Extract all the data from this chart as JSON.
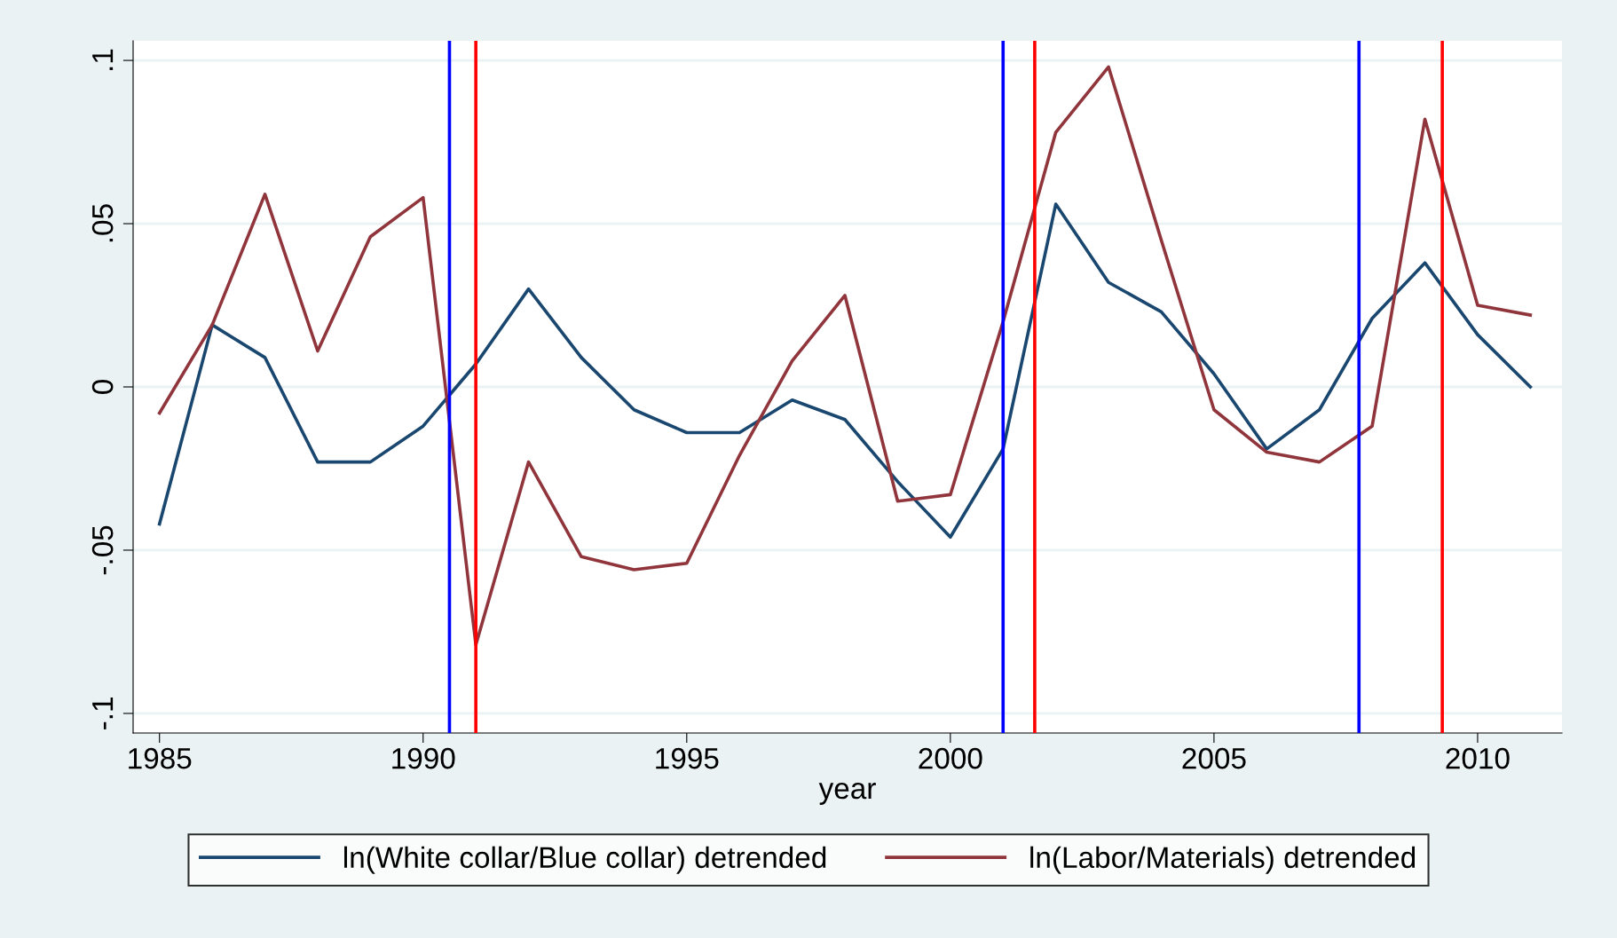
{
  "chart_data": {
    "type": "line",
    "xlabel": "year",
    "x": [
      1985,
      1986,
      1987,
      1988,
      1989,
      1990,
      1991,
      1992,
      1993,
      1994,
      1995,
      1996,
      1997,
      1998,
      1999,
      2000,
      2001,
      2002,
      2003,
      2004,
      2005,
      2006,
      2007,
      2008,
      2009,
      2010,
      2011
    ],
    "series": [
      {
        "name": "ln(White collar/Blue collar) detrended",
        "color": "#1a476f",
        "values": [
          -0.042,
          0.019,
          0.009,
          -0.023,
          -0.023,
          -0.012,
          0.007,
          0.03,
          0.009,
          -0.007,
          -0.014,
          -0.014,
          -0.004,
          -0.01,
          -0.029,
          -0.046,
          -0.019,
          0.056,
          0.032,
          0.023,
          0.004,
          -0.019,
          -0.007,
          0.021,
          0.038,
          0.016,
          0.0
        ]
      },
      {
        "name": "ln(Labor/Materials) detrended",
        "color": "#90353b",
        "values": [
          -0.008,
          0.019,
          0.059,
          0.011,
          0.046,
          0.058,
          -0.079,
          -0.023,
          -0.052,
          -0.056,
          -0.054,
          -0.021,
          0.008,
          0.028,
          -0.035,
          -0.033,
          0.02,
          0.078,
          0.098,
          0.045,
          -0.007,
          -0.02,
          -0.023,
          -0.012,
          0.082,
          0.025,
          0.022
        ]
      }
    ],
    "ref_lines": [
      {
        "axis": "x",
        "value": 1990.5,
        "color": "#0000ff"
      },
      {
        "axis": "x",
        "value": 1991,
        "color": "#ff0000"
      },
      {
        "axis": "x",
        "value": 2001,
        "color": "#0000ff"
      },
      {
        "axis": "x",
        "value": 2001.6,
        "color": "#ff0000"
      },
      {
        "axis": "x",
        "value": 2007.75,
        "color": "#0000ff"
      },
      {
        "axis": "x",
        "value": 2009.33,
        "color": "#ff0000"
      }
    ],
    "xlim": [
      1984.5,
      2011.6
    ],
    "xticks": [
      1985,
      1990,
      1995,
      2000,
      2005,
      2010
    ],
    "ylim": [
      -0.106,
      0.106
    ],
    "yticks": [
      {
        "value": -0.1,
        "label": "-.1"
      },
      {
        "value": -0.05,
        "label": "-.05"
      },
      {
        "value": 0,
        "label": "0"
      },
      {
        "value": 0.05,
        "label": ".05"
      },
      {
        "value": 0.1,
        "label": ".1"
      }
    ],
    "grid": "y",
    "legend": "bottom",
    "marker": "none",
    "line_style": "solid"
  }
}
